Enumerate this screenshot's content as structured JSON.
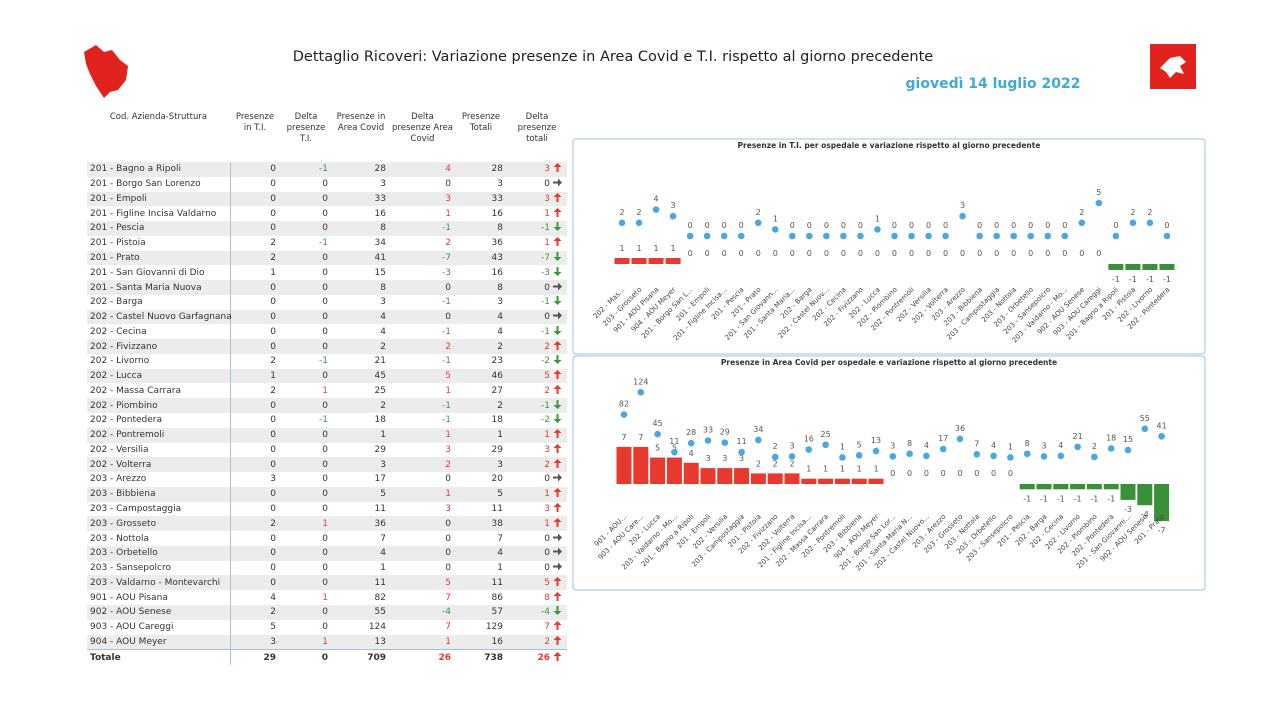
{
  "header": {
    "title": "Dettaglio Ricoveri: Variazione presenze in Area Covid e T.I. rispetto al giorno precedente",
    "date": "giovedì 14 luglio 2022"
  },
  "table": {
    "columns": [
      "Cod. Azienda-Struttura",
      "Presenze in T.I.",
      "Delta presenze T.I.",
      "Presenze in Area Covid",
      "Delta presenze Area Covid",
      "Presenze Totali",
      "Delta presenze totali"
    ],
    "rows": [
      [
        "201 - Bagno a Ripoli",
        0,
        -1,
        28,
        4,
        28,
        3
      ],
      [
        "201 - Borgo San Lorenzo",
        0,
        0,
        3,
        0,
        3,
        0
      ],
      [
        "201 - Empoli",
        0,
        0,
        33,
        3,
        33,
        3
      ],
      [
        "201 - Figline Incisa Valdarno",
        0,
        0,
        16,
        1,
        16,
        1
      ],
      [
        "201 - Pescia",
        0,
        0,
        8,
        -1,
        8,
        -1
      ],
      [
        "201 - Pistoia",
        2,
        -1,
        34,
        2,
        36,
        1
      ],
      [
        "201 - Prato",
        2,
        0,
        41,
        -7,
        43,
        -7
      ],
      [
        "201 - San Giovanni di Dio",
        1,
        0,
        15,
        -3,
        16,
        -3
      ],
      [
        "201 - Santa Maria Nuova",
        0,
        0,
        8,
        0,
        8,
        0
      ],
      [
        "202 - Barga",
        0,
        0,
        3,
        -1,
        3,
        -1
      ],
      [
        "202 - Castel Nuovo Garfagnana",
        0,
        0,
        4,
        0,
        4,
        0
      ],
      [
        "202 - Cecina",
        0,
        0,
        4,
        -1,
        4,
        -1
      ],
      [
        "202 - Fivizzano",
        0,
        0,
        2,
        2,
        2,
        2
      ],
      [
        "202 - Livorno",
        2,
        -1,
        21,
        -1,
        23,
        -2
      ],
      [
        "202 - Lucca",
        1,
        0,
        45,
        5,
        46,
        5
      ],
      [
        "202 - Massa Carrara",
        2,
        1,
        25,
        1,
        27,
        2
      ],
      [
        "202 - Piombino",
        0,
        0,
        2,
        -1,
        2,
        -1
      ],
      [
        "202 - Pontedera",
        0,
        -1,
        18,
        -1,
        18,
        -2
      ],
      [
        "202 - Pontremoli",
        0,
        0,
        1,
        1,
        1,
        1
      ],
      [
        "202 - Versilia",
        0,
        0,
        29,
        3,
        29,
        3
      ],
      [
        "202 - Volterra",
        0,
        0,
        3,
        2,
        3,
        2
      ],
      [
        "203 - Arezzo",
        3,
        0,
        17,
        0,
        20,
        0
      ],
      [
        "203 - Bibbiena",
        0,
        0,
        5,
        1,
        5,
        1
      ],
      [
        "203 - Campostaggia",
        0,
        0,
        11,
        3,
        11,
        3
      ],
      [
        "203 - Grosseto",
        2,
        1,
        36,
        0,
        38,
        1
      ],
      [
        "203 - Nottola",
        0,
        0,
        7,
        0,
        7,
        0
      ],
      [
        "203 - Orbetello",
        0,
        0,
        4,
        0,
        4,
        0
      ],
      [
        "203 - Sansepolcro",
        0,
        0,
        1,
        0,
        1,
        0
      ],
      [
        "203 - Valdarno - Montevarchi",
        0,
        0,
        11,
        5,
        11,
        5
      ],
      [
        "901 - AOU Pisana",
        4,
        1,
        82,
        7,
        86,
        8
      ],
      [
        "902 - AOU Senese",
        2,
        0,
        55,
        -4,
        57,
        -4
      ],
      [
        "903 - AOU Careggi",
        5,
        0,
        124,
        7,
        129,
        7
      ],
      [
        "904 - AOU Meyer",
        3,
        1,
        13,
        1,
        16,
        2
      ]
    ],
    "total": [
      "Totale",
      29,
      0,
      709,
      26,
      738,
      26
    ]
  },
  "chart_data": [
    {
      "type": "dot-bar",
      "title": "Presenze in T.I. per ospedale e variazione rispetto al giorno precedente",
      "categories": [
        "202 - Mas...",
        "203 - Grosseto",
        "901 - AOU Pisana",
        "904 - AOU Meyer",
        "201 - Borgo San L...",
        "201 - Empoli",
        "201 - Figline Incisa...",
        "201 - Pescia",
        "201 - Prato",
        "201 - San Giovann...",
        "201 - Santa Maria...",
        "202 - Barga",
        "202 - Castel Nuov...",
        "202 - Cecina",
        "202 - Fivizzano",
        "202 - Lucca",
        "202 - Piombino",
        "202 - Pontremoli",
        "202 - Versilia",
        "202 - Volterra",
        "203 - Arezzo",
        "203 - Bibbiena",
        "203 - Campostaggia",
        "203 - Nottola",
        "203 - Orbetello",
        "203 - Sansepolcro",
        "203 - Valdarno - Mo...",
        "902 - AOU Senese",
        "903 - AOU Careggi",
        "201 - Bagno a Ripoli",
        "201 - Pistoia",
        "202 - Livorno",
        "202 - Pontedera"
      ],
      "values": [
        2,
        2,
        4,
        3,
        0,
        0,
        0,
        0,
        2,
        1,
        0,
        0,
        0,
        0,
        0,
        1,
        0,
        0,
        0,
        0,
        3,
        0,
        0,
        0,
        0,
        0,
        0,
        2,
        5,
        0,
        2,
        2,
        0
      ],
      "deltas": [
        1,
        1,
        1,
        1,
        0,
        0,
        0,
        0,
        0,
        0,
        0,
        0,
        0,
        0,
        0,
        0,
        0,
        0,
        0,
        0,
        0,
        0,
        0,
        0,
        0,
        0,
        0,
        0,
        0,
        -1,
        -1,
        -1,
        -1
      ],
      "point_color": "#4aa8e0",
      "positive_color": "#e8392f",
      "negative_color": "#3a8f3a"
    },
    {
      "type": "dot-bar",
      "title": "Presenze in Area Covid per ospedale e variazione rispetto al giorno precedente",
      "categories": [
        "901 - AOU...",
        "903 - AOU Care...",
        "202 - Lucca",
        "203 - Valdarno - Mo...",
        "201 - Bagno a Ripoli",
        "201 - Empoli",
        "202 - Versilia",
        "203 - Campostaggia",
        "201 - Pistoia",
        "202 - Fivizzano",
        "202 - Volterra",
        "201 - Figline Incisa...",
        "202 - Massa Carrara",
        "202 - Pontremoli",
        "203 - Bibbiena",
        "904 - AOU Meyer",
        "201 - Borgo San Lor...",
        "201 - Santa Maria N...",
        "202 - Castel Nuovo...",
        "203 - Arezzo",
        "203 - Grosseto",
        "203 - Nottola",
        "203 - Orbetello",
        "203 - Sansepolcro",
        "201 - Pescia",
        "202 - Barga",
        "202 - Cecina",
        "202 - Livorno",
        "202 - Piombino",
        "202 - Pontedera",
        "201 - San Giovanni...",
        "902 - AOU Senese",
        "201 - Prato"
      ],
      "values": [
        82,
        124,
        45,
        11,
        28,
        33,
        29,
        11,
        34,
        2,
        3,
        16,
        25,
        1,
        5,
        13,
        3,
        8,
        4,
        17,
        36,
        7,
        4,
        1,
        8,
        3,
        4,
        21,
        2,
        18,
        15,
        55,
        41
      ],
      "deltas": [
        7,
        7,
        5,
        5,
        4,
        3,
        3,
        3,
        2,
        2,
        2,
        1,
        1,
        1,
        1,
        1,
        0,
        0,
        0,
        0,
        0,
        0,
        0,
        0,
        -1,
        -1,
        -1,
        -1,
        -1,
        -1,
        -3,
        -4,
        -7
      ],
      "point_color": "#4aa8e0",
      "positive_color": "#e8392f",
      "negative_color": "#3a8f3a"
    }
  ]
}
